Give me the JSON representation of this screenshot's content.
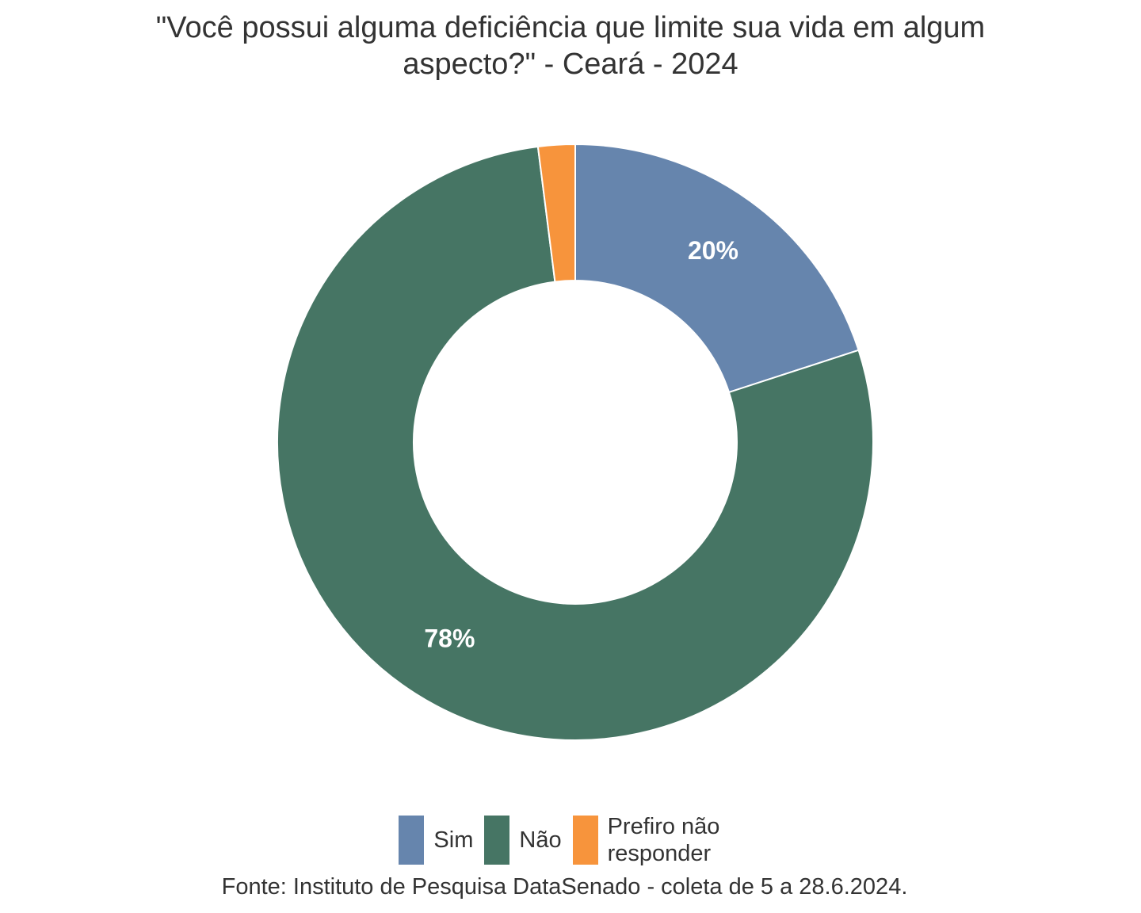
{
  "chart_data": {
    "type": "pie",
    "variant": "donut",
    "title_lines": [
      "\"Você possui alguma deficiência que limite sua vida em algum",
      "aspecto?\" - Ceará - 2024"
    ],
    "slices": [
      {
        "label": "Sim",
        "value": 20,
        "display": "20%",
        "color": "#6685ad"
      },
      {
        "label": "Não",
        "value": 78,
        "display": "78%",
        "color": "#467564"
      },
      {
        "label": "Prefiro não responder",
        "value": 2,
        "display": "",
        "color": "#f7943c"
      }
    ],
    "legend_position": "bottom",
    "source": "Fonte: Instituto de Pesquisa DataSenado - coleta de 5 a 28.6.2024."
  }
}
